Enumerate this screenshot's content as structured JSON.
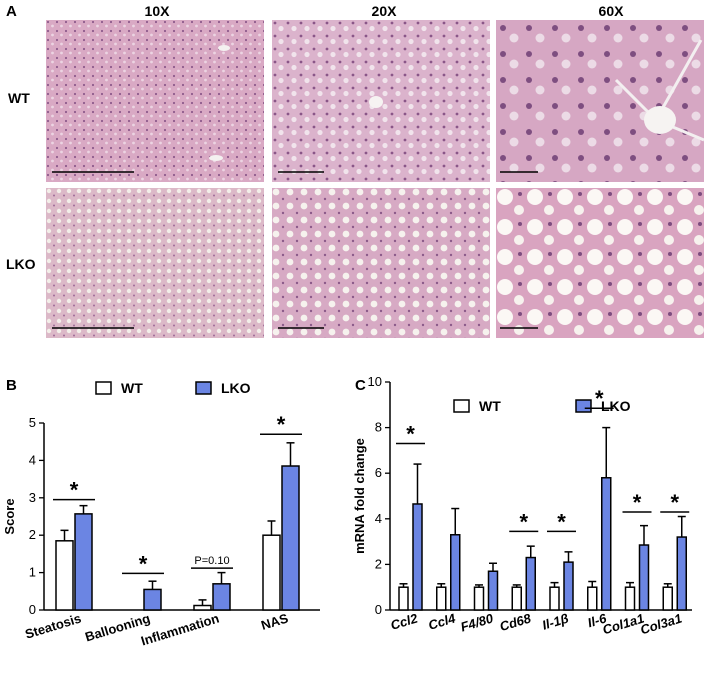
{
  "panel_a": {
    "letter": "A",
    "columns": [
      "10X",
      "20X",
      "60X"
    ],
    "rows": [
      "WT",
      "LKO"
    ]
  },
  "chart_data": [
    {
      "panel_letter": "B",
      "type": "bar",
      "legend": [
        "WT",
        "LKO"
      ],
      "legend_position": "top",
      "ylabel": "Score",
      "ylim": [
        0,
        5
      ],
      "yticks": [
        0,
        1,
        2,
        3,
        4,
        5
      ],
      "categories": [
        "Steatosis",
        "Ballooning",
        "Inflammation",
        "NAS"
      ],
      "series": [
        {
          "name": "WT",
          "color": "#ffffff",
          "values": [
            1.85,
            0.0,
            0.12,
            2.0
          ],
          "errors": [
            0.28,
            0.0,
            0.15,
            0.38
          ]
        },
        {
          "name": "LKO",
          "color": "#6b85e3",
          "values": [
            2.57,
            0.55,
            0.7,
            3.85
          ],
          "errors": [
            0.22,
            0.22,
            0.3,
            0.62
          ]
        }
      ],
      "annotations": [
        {
          "category": "Steatosis",
          "text": "*",
          "y": 2.95
        },
        {
          "category": "Ballooning",
          "text": "*",
          "y": 0.98
        },
        {
          "category": "Inflammation",
          "text": "P=0.10",
          "y": 1.12
        },
        {
          "category": "NAS",
          "text": "*",
          "y": 4.7
        }
      ]
    },
    {
      "panel_letter": "C",
      "type": "bar",
      "legend": [
        "WT",
        "LKO"
      ],
      "legend_position": "top",
      "ylabel": "mRNA fold change",
      "ylim": [
        0,
        10
      ],
      "yticks": [
        0,
        2,
        4,
        6,
        8,
        10
      ],
      "categories": [
        "Ccl2",
        "Ccl4",
        "F4/80",
        "Cd68",
        "Il-1β",
        "Il-6",
        "Col1a1",
        "Col3a1"
      ],
      "series": [
        {
          "name": "WT",
          "color": "#ffffff",
          "values": [
            1.0,
            1.0,
            1.0,
            1.0,
            1.0,
            1.0,
            1.0,
            1.0
          ],
          "errors": [
            0.15,
            0.15,
            0.1,
            0.1,
            0.2,
            0.25,
            0.2,
            0.15
          ]
        },
        {
          "name": "LKO",
          "color": "#6b85e3",
          "values": [
            4.65,
            3.3,
            1.7,
            2.3,
            2.1,
            5.8,
            2.85,
            3.2
          ],
          "errors": [
            1.75,
            1.15,
            0.35,
            0.5,
            0.45,
            2.2,
            0.85,
            0.9
          ]
        }
      ],
      "annotations": [
        {
          "category": "Ccl2",
          "text": "*",
          "y": 7.3
        },
        {
          "category": "Cd68",
          "text": "*",
          "y": 3.45
        },
        {
          "category": "Il-1β",
          "text": "*",
          "y": 3.45
        },
        {
          "category": "Il-6",
          "text": "*",
          "y": 8.85
        },
        {
          "category": "Col1a1",
          "text": "*",
          "y": 4.3
        },
        {
          "category": "Col3a1",
          "text": "*",
          "y": 4.3
        }
      ]
    }
  ]
}
